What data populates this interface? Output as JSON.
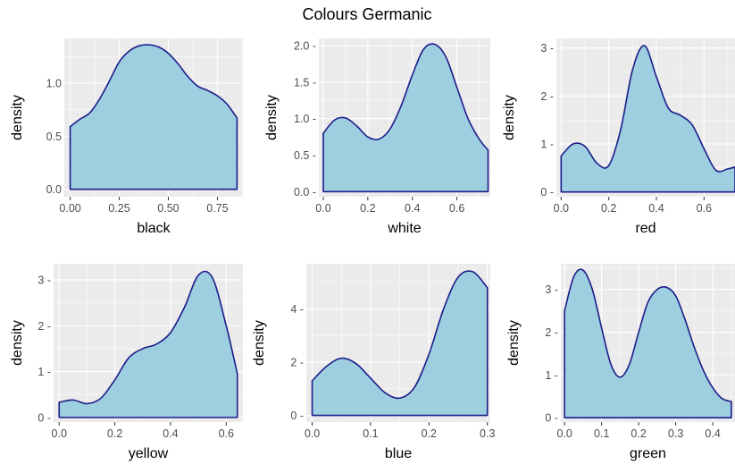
{
  "title": "Colours Germanic",
  "chart_data": [
    {
      "type": "area",
      "xlabel": "black",
      "ylabel": "density",
      "xlim": [
        -0.03,
        0.88
      ],
      "ylim": [
        -0.07,
        1.42
      ],
      "xticks": [
        0,
        0.25,
        0.5,
        0.75
      ],
      "xtick_labels": [
        "0.00",
        "0.25",
        "0.50",
        "0.75"
      ],
      "yticks": [
        0,
        0.5,
        1.0
      ],
      "ytick_labels": [
        "0.0",
        "0.5",
        "1.0"
      ],
      "x": [
        0,
        0.05,
        0.1,
        0.15,
        0.2,
        0.25,
        0.3,
        0.35,
        0.4,
        0.45,
        0.5,
        0.55,
        0.6,
        0.65,
        0.7,
        0.75,
        0.8,
        0.85
      ],
      "values": [
        0.59,
        0.66,
        0.72,
        0.85,
        1.02,
        1.2,
        1.3,
        1.35,
        1.36,
        1.34,
        1.28,
        1.18,
        1.06,
        0.97,
        0.93,
        0.88,
        0.8,
        0.67
      ],
      "fill": "#9ecfe0",
      "line": "#1c1c8a"
    },
    {
      "type": "area",
      "xlabel": "white",
      "ylabel": "density",
      "xlim": [
        -0.02,
        0.75
      ],
      "ylim": [
        -0.07,
        2.1
      ],
      "xticks": [
        0,
        0.2,
        0.4,
        0.6
      ],
      "xtick_labels": [
        "0.0",
        "0.2",
        "0.4",
        "0.6"
      ],
      "yticks": [
        0,
        0.5,
        1.0,
        1.5,
        2.0
      ],
      "ytick_labels": [
        "0.0 -",
        "0.5 -",
        "1.0 -",
        "1.5 -",
        "2.0 -"
      ],
      "x": [
        0,
        0.05,
        0.1,
        0.15,
        0.2,
        0.25,
        0.3,
        0.35,
        0.4,
        0.45,
        0.5,
        0.55,
        0.6,
        0.65,
        0.7,
        0.74
      ],
      "values": [
        0.8,
        0.98,
        1.01,
        0.9,
        0.75,
        0.72,
        0.86,
        1.18,
        1.6,
        1.95,
        2.02,
        1.85,
        1.43,
        1.0,
        0.72,
        0.57
      ],
      "fill": "#9ecfe0",
      "line": "#1c1c8a"
    },
    {
      "type": "area",
      "xlabel": "red",
      "ylabel": "density",
      "xlim": [
        -0.02,
        0.73
      ],
      "ylim": [
        -0.1,
        3.2
      ],
      "xticks": [
        0,
        0.2,
        0.4,
        0.6
      ],
      "xtick_labels": [
        "0.0",
        "0.2",
        "0.4",
        "0.6"
      ],
      "yticks": [
        0,
        1,
        2,
        3
      ],
      "ytick_labels": [
        "0 -",
        "1 -",
        "2 -",
        "3 -"
      ],
      "x": [
        0,
        0.05,
        0.1,
        0.15,
        0.2,
        0.25,
        0.3,
        0.35,
        0.4,
        0.45,
        0.5,
        0.55,
        0.6,
        0.65,
        0.7,
        0.73
      ],
      "values": [
        0.75,
        1.0,
        0.95,
        0.6,
        0.55,
        1.3,
        2.55,
        3.05,
        2.4,
        1.75,
        1.6,
        1.4,
        0.9,
        0.45,
        0.48,
        0.52
      ],
      "fill": "#9ecfe0",
      "line": "#1c1c8a"
    },
    {
      "type": "area",
      "xlabel": "yellow",
      "ylabel": "density",
      "xlim": [
        -0.02,
        0.66
      ],
      "ylim": [
        -0.1,
        3.35
      ],
      "xticks": [
        0,
        0.2,
        0.4,
        0.6
      ],
      "xtick_labels": [
        "0.0",
        "0.2",
        "0.4",
        "0.6"
      ],
      "yticks": [
        0,
        1,
        2,
        3
      ],
      "ytick_labels": [
        "0 -",
        "1 -",
        "2 -",
        "3 -"
      ],
      "x": [
        0,
        0.05,
        0.1,
        0.15,
        0.2,
        0.25,
        0.3,
        0.35,
        0.4,
        0.45,
        0.5,
        0.55,
        0.6,
        0.64
      ],
      "values": [
        0.33,
        0.38,
        0.3,
        0.42,
        0.82,
        1.3,
        1.5,
        1.6,
        1.85,
        2.4,
        3.1,
        3.05,
        2.0,
        0.95
      ],
      "fill": "#9ecfe0",
      "line": "#1c1c8a"
    },
    {
      "type": "area",
      "xlabel": "blue",
      "ylabel": "density",
      "xlim": [
        -0.01,
        0.305
      ],
      "ylim": [
        -0.25,
        5.7
      ],
      "xticks": [
        0,
        0.1,
        0.2,
        0.3
      ],
      "xtick_labels": [
        "0.0",
        "0.1",
        "0.2",
        "0.3"
      ],
      "yticks": [
        0,
        2,
        4
      ],
      "ytick_labels": [
        "0 -",
        "2 -",
        "4 -"
      ],
      "x": [
        0,
        0.025,
        0.05,
        0.075,
        0.1,
        0.125,
        0.15,
        0.175,
        0.2,
        0.225,
        0.25,
        0.275,
        0.3
      ],
      "values": [
        1.3,
        1.85,
        2.15,
        1.95,
        1.4,
        0.85,
        0.65,
        1.05,
        2.3,
        4.0,
        5.2,
        5.4,
        4.8
      ],
      "fill": "#9ecfe0",
      "line": "#1c1c8a"
    },
    {
      "type": "area",
      "xlabel": "green",
      "ylabel": "density",
      "xlim": [
        -0.01,
        0.46
      ],
      "ylim": [
        -0.1,
        3.6
      ],
      "xticks": [
        0,
        0.1,
        0.2,
        0.3,
        0.4
      ],
      "xtick_labels": [
        "0.0",
        "0.1",
        "0.2",
        "0.3",
        "0.4"
      ],
      "yticks": [
        0,
        1,
        2,
        3
      ],
      "ytick_labels": [
        "0 -",
        "1 -",
        "2 -",
        "3 -"
      ],
      "x": [
        0,
        0.025,
        0.05,
        0.075,
        0.1,
        0.125,
        0.15,
        0.175,
        0.2,
        0.225,
        0.25,
        0.275,
        0.3,
        0.325,
        0.35,
        0.375,
        0.4,
        0.425,
        0.45
      ],
      "values": [
        2.5,
        3.3,
        3.45,
        3.0,
        2.1,
        1.25,
        0.95,
        1.25,
        2.0,
        2.7,
        3.0,
        3.05,
        2.85,
        2.3,
        1.65,
        1.1,
        0.7,
        0.45,
        0.38
      ],
      "fill": "#9ecfe0",
      "line": "#1c1c8a"
    }
  ]
}
